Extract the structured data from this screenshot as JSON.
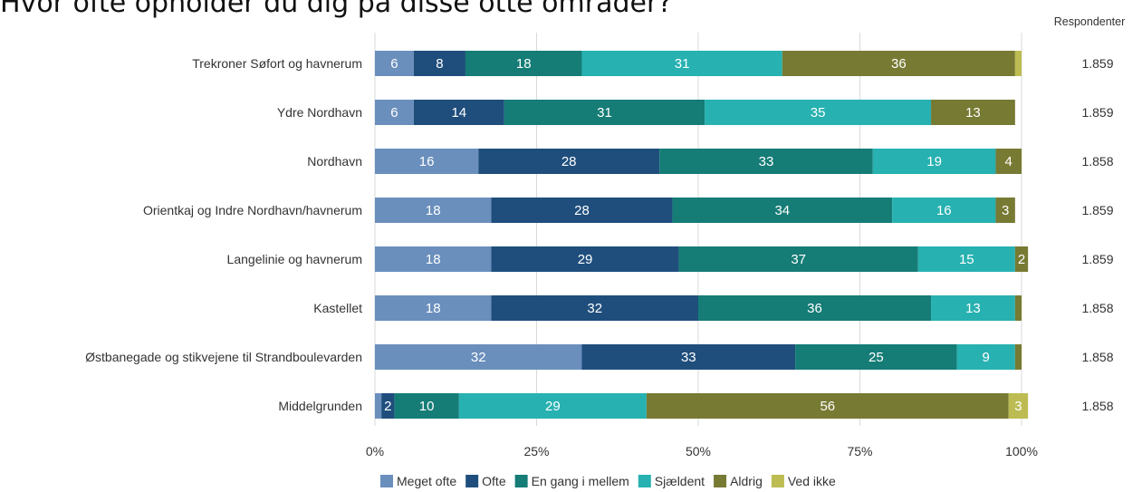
{
  "question": "Hvor ofte opholder du dig på disse otte områder?",
  "colors": {
    "Meget ofte": "#6a8fbd",
    "Ofte": "#1f4e7d",
    "En gang i mellem": "#157c76",
    "Sjældent": "#27b1b1",
    "Aldrig": "#777a33",
    "Ved ikke": "#bcbc52"
  },
  "chart_data": {
    "type": "bar",
    "orientation": "horizontal",
    "stacked": "percent",
    "categories": [
      "Trekroner Søfort og havnerum",
      "Ydre Nordhavn",
      "Nordhavn",
      "Orientkaj og Indre Nordhavn/havnerum",
      "Langelinie og havnerum",
      "Kastellet",
      "Østbanegade og stikvejene til Strandboulevarden",
      "Middelgrunden"
    ],
    "series": [
      {
        "name": "Meget ofte",
        "values": [
          6,
          6,
          16,
          18,
          18,
          18,
          32,
          1
        ]
      },
      {
        "name": "Ofte",
        "values": [
          8,
          14,
          28,
          28,
          29,
          32,
          33,
          2
        ]
      },
      {
        "name": "En gang i mellem",
        "values": [
          18,
          31,
          33,
          34,
          37,
          36,
          25,
          10
        ]
      },
      {
        "name": "Sjældent",
        "values": [
          31,
          35,
          19,
          16,
          15,
          13,
          9,
          29
        ]
      },
      {
        "name": "Aldrig",
        "values": [
          36,
          13,
          4,
          3,
          2,
          1,
          1,
          56
        ]
      },
      {
        "name": "Ved ikke",
        "values": [
          1,
          0,
          0,
          0,
          0,
          0,
          0,
          3
        ]
      }
    ],
    "value_labels": [
      [
        "6",
        "8",
        "18",
        "31",
        "36",
        ""
      ],
      [
        "6",
        "14",
        "31",
        "35",
        "13",
        ""
      ],
      [
        "16",
        "28",
        "33",
        "19",
        "4",
        ""
      ],
      [
        "18",
        "28",
        "34",
        "16",
        "3",
        ""
      ],
      [
        "18",
        "29",
        "37",
        "15",
        "2",
        ""
      ],
      [
        "18",
        "32",
        "36",
        "13",
        "",
        ""
      ],
      [
        "32",
        "33",
        "25",
        "9",
        "",
        ""
      ],
      [
        "",
        "2",
        "10",
        "29",
        "56",
        "3"
      ]
    ],
    "respondents_header": "Respondenter",
    "respondents": [
      "1.859",
      "1.859",
      "1.858",
      "1.859",
      "1.859",
      "1.858",
      "1.858",
      "1.858"
    ],
    "x_ticks": [
      "0%",
      "25%",
      "50%",
      "75%",
      "100%"
    ],
    "xlim": [
      0,
      100
    ],
    "grid": true,
    "legend_position": "bottom"
  }
}
